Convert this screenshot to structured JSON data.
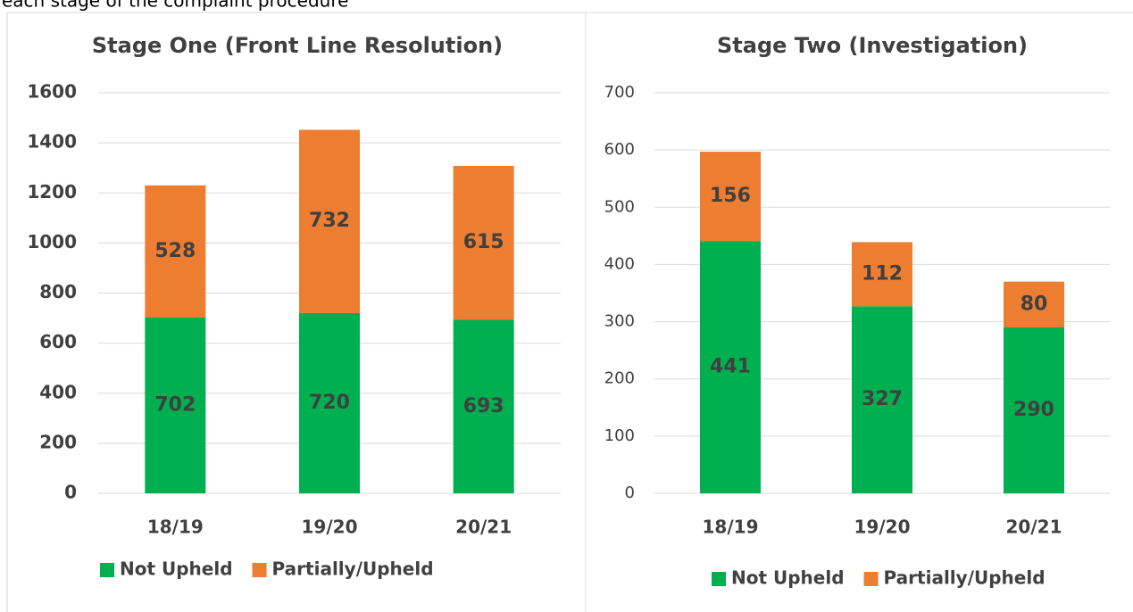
{
  "caption": "each stage of the complaint procedure",
  "chart_data": [
    {
      "type": "bar",
      "stacked": true,
      "title": "Stage One (Front Line Resolution)",
      "categories": [
        "18/19",
        "19/20",
        "20/21"
      ],
      "series": [
        {
          "name": "Not Upheld",
          "color": "#00b050",
          "values": [
            702,
            720,
            693
          ]
        },
        {
          "name": "Partially/Upheld",
          "color": "#ed7d31",
          "values": [
            528,
            732,
            615
          ]
        }
      ],
      "ylim": [
        0,
        1600
      ],
      "yticks": [
        0,
        200,
        400,
        600,
        800,
        1000,
        1200,
        1400,
        1600
      ],
      "grid": true,
      "legend": "bottom"
    },
    {
      "type": "bar",
      "stacked": true,
      "title": "Stage Two (Investigation)",
      "categories": [
        "18/19",
        "19/20",
        "20/21"
      ],
      "series": [
        {
          "name": "Not Upheld",
          "color": "#00b050",
          "values": [
            441,
            327,
            290
          ]
        },
        {
          "name": "Partially/Upheld",
          "color": "#ed7d31",
          "values": [
            156,
            112,
            80
          ]
        }
      ],
      "ylim": [
        0,
        700
      ],
      "yticks": [
        0,
        100,
        200,
        300,
        400,
        500,
        600,
        700
      ],
      "grid": true,
      "legend": "bottom"
    }
  ]
}
